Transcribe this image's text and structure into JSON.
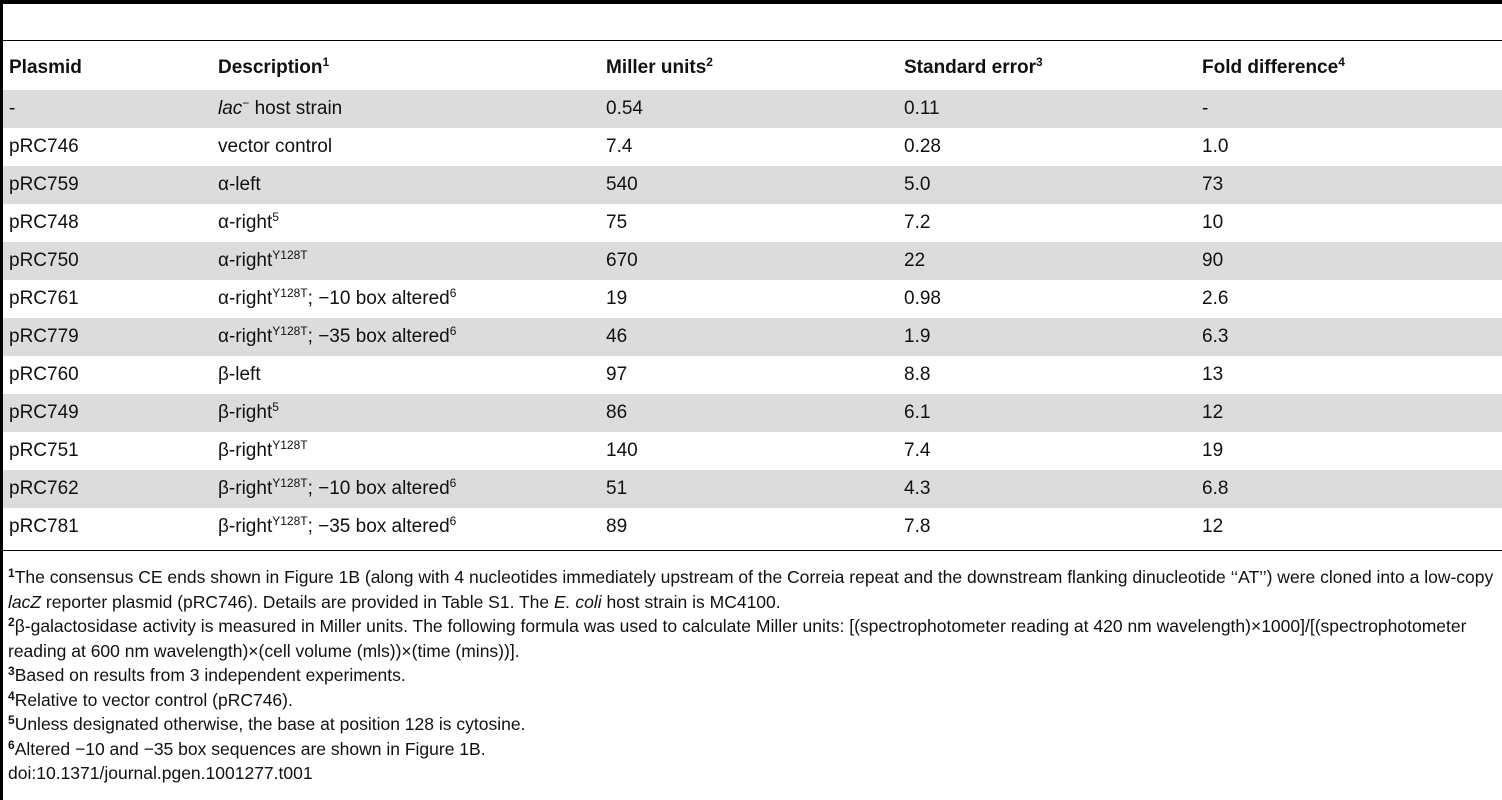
{
  "table": {
    "headers": [
      {
        "text": "Plasmid",
        "sup": ""
      },
      {
        "text": "Description",
        "sup": "1"
      },
      {
        "text": "Miller units",
        "sup": "2"
      },
      {
        "text": "Standard error",
        "sup": "3"
      },
      {
        "text": "Fold difference",
        "sup": "4"
      }
    ],
    "rows": [
      {
        "plasmid": "-",
        "desc_italic": "lac",
        "desc_sup": "−",
        "desc_rest": " host strain",
        "desc_sup2": "",
        "miller": "0.54",
        "se": "0.11",
        "fold": "-"
      },
      {
        "plasmid": "pRC746",
        "desc_italic": "",
        "desc_sup": "",
        "desc_rest": "vector control",
        "desc_sup2": "",
        "miller": "7.4",
        "se": "0.28",
        "fold": "1.0"
      },
      {
        "plasmid": "pRC759",
        "desc_italic": "",
        "desc_sup": "",
        "desc_rest": "α-left",
        "desc_sup2": "",
        "miller": "540",
        "se": "5.0",
        "fold": "73"
      },
      {
        "plasmid": "pRC748",
        "desc_italic": "",
        "desc_sup": "",
        "desc_rest": "α-right",
        "desc_sup2": "5",
        "miller": "75",
        "se": "7.2",
        "fold": "10"
      },
      {
        "plasmid": "pRC750",
        "desc_italic": "",
        "desc_sup": "",
        "desc_rest": "α-right",
        "desc_sup2": "Y128T",
        "miller": "670",
        "se": "22",
        "fold": "90"
      },
      {
        "plasmid": "pRC761",
        "desc_italic": "",
        "desc_sup": "",
        "desc_rest": "α-right",
        "desc_sup2": "Y128T",
        "desc_tail": "; −10 box altered",
        "desc_sup3": "6",
        "miller": "19",
        "se": "0.98",
        "fold": "2.6"
      },
      {
        "plasmid": "pRC779",
        "desc_italic": "",
        "desc_sup": "",
        "desc_rest": "α-right",
        "desc_sup2": "Y128T",
        "desc_tail": "; −35 box altered",
        "desc_sup3": "6",
        "miller": "46",
        "se": "1.9",
        "fold": "6.3"
      },
      {
        "plasmid": "pRC760",
        "desc_italic": "",
        "desc_sup": "",
        "desc_rest": "β-left",
        "desc_sup2": "",
        "miller": "97",
        "se": "8.8",
        "fold": "13"
      },
      {
        "plasmid": "pRC749",
        "desc_italic": "",
        "desc_sup": "",
        "desc_rest": "β-right",
        "desc_sup2": "5",
        "miller": "86",
        "se": "6.1",
        "fold": "12"
      },
      {
        "plasmid": "pRC751",
        "desc_italic": "",
        "desc_sup": "",
        "desc_rest": "β-right",
        "desc_sup2": "Y128T",
        "miller": "140",
        "se": "7.4",
        "fold": "19"
      },
      {
        "plasmid": "pRC762",
        "desc_italic": "",
        "desc_sup": "",
        "desc_rest": "β-right",
        "desc_sup2": "Y128T",
        "desc_tail": "; −10 box altered",
        "desc_sup3": "6",
        "miller": "51",
        "se": "4.3",
        "fold": "6.8"
      },
      {
        "plasmid": "pRC781",
        "desc_italic": "",
        "desc_sup": "",
        "desc_rest": "β-right",
        "desc_sup2": "Y128T",
        "desc_tail": "; −35 box altered",
        "desc_sup3": "6",
        "miller": "89",
        "se": "7.8",
        "fold": "12"
      }
    ]
  },
  "footnotes": [
    {
      "mark": "1",
      "parts": [
        {
          "t": "The consensus CE ends shown in Figure 1B (along with 4 nucleotides immediately upstream of the Correia repeat and the downstream flanking dinucleotide ‘‘AT’’) were cloned into a low-copy "
        },
        {
          "t": "lacZ",
          "i": true
        },
        {
          "t": " reporter plasmid (pRC746). Details are provided in Table S1. The "
        },
        {
          "t": "E. coli",
          "i": true
        },
        {
          "t": " host strain is MC4100."
        }
      ]
    },
    {
      "mark": "2",
      "parts": [
        {
          "t": "β-galactosidase activity is measured in Miller units. The following formula was used to calculate Miller units: [(spectrophotometer reading at 420 nm wavelength)×1000]/[(spectrophotometer reading at 600 nm wavelength)×(cell volume (mls))×(time (mins))]."
        }
      ]
    },
    {
      "mark": "3",
      "parts": [
        {
          "t": "Based on results from 3 independent experiments."
        }
      ]
    },
    {
      "mark": "4",
      "parts": [
        {
          "t": "Relative to vector control (pRC746)."
        }
      ]
    },
    {
      "mark": "5",
      "parts": [
        {
          "t": "Unless designated otherwise, the base at position 128 is cytosine."
        }
      ]
    },
    {
      "mark": "6",
      "parts": [
        {
          "t": "Altered −10 and −35 box sequences are shown in Figure 1B."
        }
      ]
    }
  ],
  "doi": "doi:10.1371/journal.pgen.1001277.t001"
}
